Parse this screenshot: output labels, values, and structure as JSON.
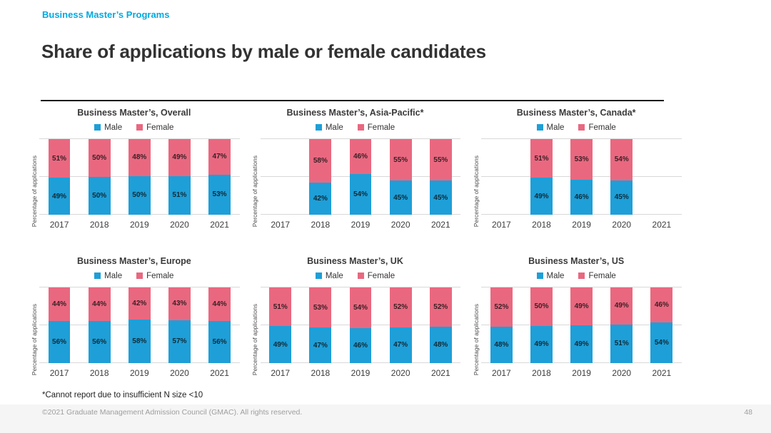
{
  "page": {
    "eyebrow": "Business Master’s Programs",
    "title": "Share of applications by male or female candidates",
    "footnote": "*Cannot report due to insufficient N size <10",
    "copyright": "©2021 Graduate Management Admission Council (GMAC). All rights reserved.",
    "page_number": "48"
  },
  "colors": {
    "male": "#1E9FD8",
    "female": "#E96880",
    "accent_blue": "#00A9E0",
    "gridline": "#D8D8D8"
  },
  "chart_data": [
    {
      "type": "bar",
      "stacked": true,
      "title": "Business Master’s, Overall",
      "categories": [
        "2017",
        "2018",
        "2019",
        "2020",
        "2021"
      ],
      "series": [
        {
          "name": "Male",
          "color": "#1E9FD8",
          "values": [
            49,
            50,
            50,
            51,
            53
          ],
          "labels": [
            "49%",
            "50%",
            "50%",
            "51%",
            "53%"
          ]
        },
        {
          "name": "Female",
          "color": "#E96880",
          "values": [
            51,
            50,
            48,
            49,
            47
          ],
          "labels": [
            "51%",
            "50%",
            "48%",
            "49%",
            "47%"
          ]
        }
      ],
      "xlabel": "",
      "ylabel": "Percentage of applications",
      "ylim": [
        0,
        100
      ],
      "yticks_visible": false,
      "grid": true,
      "legend_position": "top"
    },
    {
      "type": "bar",
      "stacked": true,
      "title": "Business Master’s, Asia-Pacific*",
      "categories": [
        "2017",
        "2018",
        "2019",
        "2020",
        "2021"
      ],
      "series": [
        {
          "name": "Male",
          "color": "#1E9FD8",
          "values": [
            null,
            42,
            54,
            45,
            45
          ],
          "labels": [
            null,
            "42%",
            "54%",
            "45%",
            "45%"
          ]
        },
        {
          "name": "Female",
          "color": "#E96880",
          "values": [
            null,
            58,
            46,
            55,
            55
          ],
          "labels": [
            null,
            "58%",
            "46%",
            "55%",
            "55%"
          ]
        }
      ],
      "xlabel": "",
      "ylabel": "Percentage of applications",
      "ylim": [
        0,
        100
      ],
      "yticks_visible": false,
      "grid": true,
      "legend_position": "top",
      "note": "2017 not reported"
    },
    {
      "type": "bar",
      "stacked": true,
      "title": "Business Master’s, Canada*",
      "categories": [
        "2017",
        "2018",
        "2019",
        "2020",
        "2021"
      ],
      "series": [
        {
          "name": "Male",
          "color": "#1E9FD8",
          "values": [
            null,
            49,
            46,
            45,
            null
          ],
          "labels": [
            null,
            "49%",
            "46%",
            "45%",
            null
          ]
        },
        {
          "name": "Female",
          "color": "#E96880",
          "values": [
            null,
            51,
            53,
            54,
            null
          ],
          "labels": [
            null,
            "51%",
            "53%",
            "54%",
            null
          ]
        }
      ],
      "xlabel": "",
      "ylabel": "Percentage of applications",
      "ylim": [
        0,
        100
      ],
      "yticks_visible": false,
      "grid": true,
      "legend_position": "top",
      "note": "2017 and 2021 not reported"
    },
    {
      "type": "bar",
      "stacked": true,
      "title": "Business Master’s, Europe",
      "categories": [
        "2017",
        "2018",
        "2019",
        "2020",
        "2021"
      ],
      "series": [
        {
          "name": "Male",
          "color": "#1E9FD8",
          "values": [
            56,
            56,
            58,
            57,
            56
          ],
          "labels": [
            "56%",
            "56%",
            "58%",
            "57%",
            "56%"
          ]
        },
        {
          "name": "Female",
          "color": "#E96880",
          "values": [
            44,
            44,
            42,
            43,
            44
          ],
          "labels": [
            "44%",
            "44%",
            "42%",
            "43%",
            "44%"
          ]
        }
      ],
      "xlabel": "",
      "ylabel": "Percentage of applications",
      "ylim": [
        0,
        100
      ],
      "yticks_visible": false,
      "grid": true,
      "legend_position": "top"
    },
    {
      "type": "bar",
      "stacked": true,
      "title": "Business Master’s, UK",
      "categories": [
        "2017",
        "2018",
        "2019",
        "2020",
        "2021"
      ],
      "series": [
        {
          "name": "Male",
          "color": "#1E9FD8",
          "values": [
            49,
            47,
            46,
            47,
            48
          ],
          "labels": [
            "49%",
            "47%",
            "46%",
            "47%",
            "48%"
          ]
        },
        {
          "name": "Female",
          "color": "#E96880",
          "values": [
            51,
            53,
            54,
            52,
            52
          ],
          "labels": [
            "51%",
            "53%",
            "54%",
            "52%",
            "52%"
          ]
        }
      ],
      "xlabel": "",
      "ylabel": "Percentage of applications",
      "ylim": [
        0,
        100
      ],
      "yticks_visible": false,
      "grid": true,
      "legend_position": "top"
    },
    {
      "type": "bar",
      "stacked": true,
      "title": "Business Master’s, US",
      "categories": [
        "2017",
        "2018",
        "2019",
        "2020",
        "2021"
      ],
      "series": [
        {
          "name": "Male",
          "color": "#1E9FD8",
          "values": [
            48,
            49,
            49,
            51,
            54
          ],
          "labels": [
            "48%",
            "49%",
            "49%",
            "51%",
            "54%"
          ]
        },
        {
          "name": "Female",
          "color": "#E96880",
          "values": [
            52,
            50,
            49,
            49,
            46
          ],
          "labels": [
            "52%",
            "50%",
            "49%",
            "49%",
            "46%"
          ]
        }
      ],
      "xlabel": "",
      "ylabel": "Percentage of applications",
      "ylim": [
        0,
        100
      ],
      "yticks_visible": false,
      "grid": true,
      "legend_position": "top"
    }
  ]
}
